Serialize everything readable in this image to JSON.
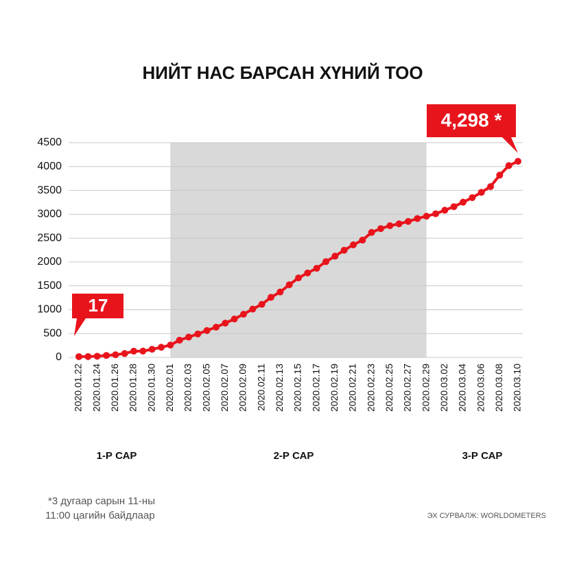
{
  "chart_data": {
    "type": "line",
    "title": "НИЙТ НАС БАРСАН ХҮНИЙ ТОО",
    "categories": [
      "2020.01.22",
      null,
      "2020.01.24",
      null,
      "2020.01.26",
      null,
      "2020.01.28",
      null,
      "2020.01.30",
      null,
      "2020.02.01",
      null,
      "2020.02.03",
      null,
      "2020.02.05",
      null,
      "2020.02.07",
      null,
      "2020.02.09",
      null,
      "2020.02.11",
      null,
      "2020.02.13",
      null,
      "2020.02.15",
      null,
      "2020.02.17",
      null,
      "2020.02.19",
      null,
      "2020.02.21",
      null,
      "2020.02.23",
      null,
      "2020.02.25",
      null,
      "2020.02.27",
      null,
      "2020.02.29",
      null,
      "2020.03.02",
      null,
      "2020.03.04",
      null,
      "2020.03.06",
      null,
      "2020.03.08",
      null,
      "2020.03.10"
    ],
    "series": [
      {
        "name": "Нас барсан",
        "color": "#e8141c",
        "values": [
          17,
          18,
          26,
          42,
          56,
          82,
          131,
          133,
          171,
          213,
          259,
          362,
          426,
          492,
          564,
          634,
          719,
          806,
          906,
          1013,
          1113,
          1260,
          1371,
          1523,
          1666,
          1770,
          1868,
          2007,
          2122,
          2247,
          2360,
          2458,
          2620,
          2700,
          2760,
          2800,
          2850,
          2910,
          2960,
          3010,
          3085,
          3160,
          3254,
          3348,
          3460,
          3580,
          3820,
          4020,
          4110
        ]
      }
    ],
    "ylim": [
      0,
      4500
    ],
    "yticks": [
      0,
      500,
      1000,
      1500,
      2000,
      2500,
      3000,
      3500,
      4000,
      4500
    ],
    "grid": true,
    "shade": {
      "from": "2020.02.01",
      "to": "2020.02.29",
      "color": "#d9d9d9"
    },
    "annotations": [
      {
        "text": "17"
      },
      {
        "text": "4,298 *"
      }
    ],
    "months": [
      "1-Р САР",
      "2-Р САР",
      "3-Р САР"
    ],
    "footnote": [
      "*3 дугаар сарын 11-ны",
      "11:00 цагийн байдлаар"
    ],
    "source": "ЭХ СУРВАЛЖ: WORLDOMETERS"
  }
}
